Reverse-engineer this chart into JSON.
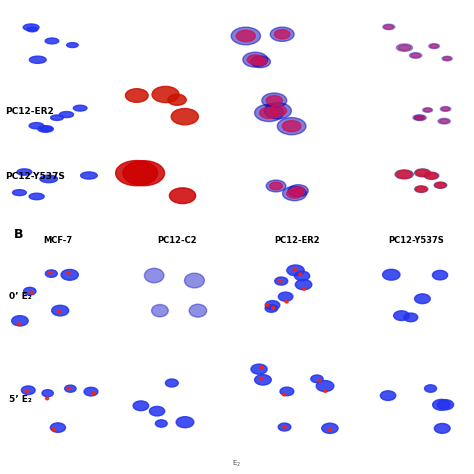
{
  "bg_color": "#ffffff",
  "panel_B_label": "B",
  "top_section": {
    "row_labels": [
      "",
      "PC12-ER2",
      "PC12-Y537S"
    ],
    "col_group1_colors": [
      [
        "#0000cc",
        "#000000",
        "#550033"
      ],
      [
        "#0011aa",
        "#cc1100",
        "#aa0066"
      ],
      [
        "#0000aa",
        "#cc0000",
        "#dd1155"
      ]
    ],
    "col_group2_colors": [
      [
        "#330011"
      ],
      [
        "#553366"
      ],
      [
        "#993355"
      ]
    ]
  },
  "bottom_section": {
    "col_labels": [
      "MCF-7",
      "PC12-C2",
      "PC12-ER2",
      "PC12-Y537S"
    ],
    "row_labels": [
      "0’ E₂",
      "5’ E₂"
    ],
    "bot_bgs": [
      [
        "#000010",
        "#220008",
        "#000010",
        "#000010"
      ],
      [
        "#000010",
        "#000010",
        "#000010",
        "#000010"
      ]
    ]
  }
}
